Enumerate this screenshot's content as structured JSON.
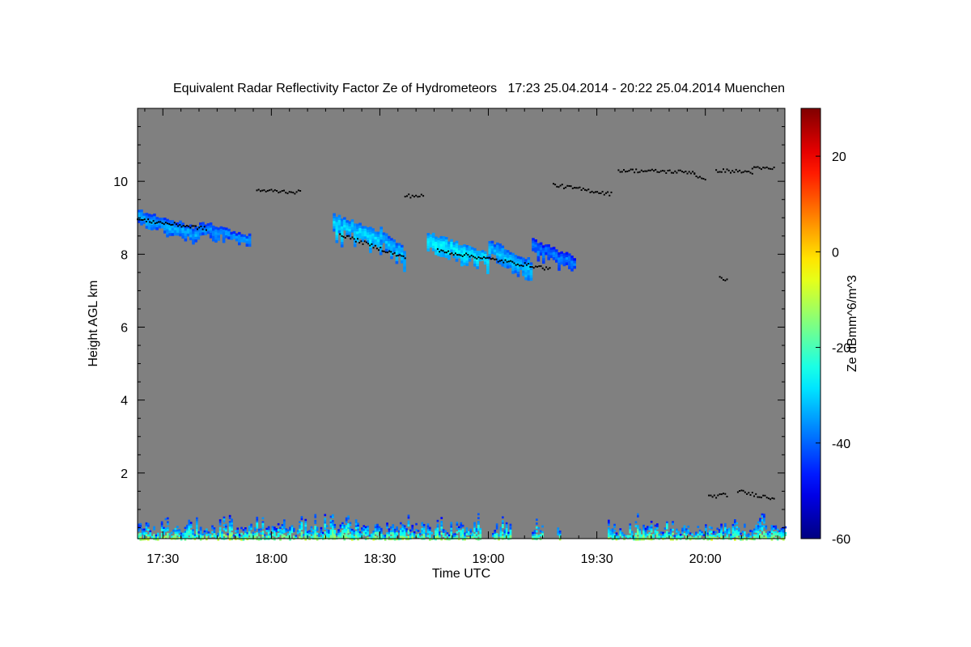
{
  "chart_data": {
    "type": "heatmap",
    "title": "Equivalent Radar Reflectivity Factor Ze of Hydrometeors   17:23 25.04.2014 - 20:22 25.04.2014 Muenchen",
    "xlabel": "Time UTC",
    "ylabel": "Height AGL km",
    "colorbar_label": "Ze dBmm^6/m^3",
    "x_unit": "minutes",
    "xlim": [
      1043,
      1222
    ],
    "ylim": [
      0.2,
      12.0
    ],
    "x_ticks": [
      {
        "value": 1050,
        "label": "17:30"
      },
      {
        "value": 1080,
        "label": "18:00"
      },
      {
        "value": 1110,
        "label": "18:30"
      },
      {
        "value": 1140,
        "label": "19:00"
      },
      {
        "value": 1170,
        "label": "19:30"
      },
      {
        "value": 1200,
        "label": "20:00"
      }
    ],
    "y_ticks": [
      {
        "value": 2,
        "label": "2"
      },
      {
        "value": 4,
        "label": "4"
      },
      {
        "value": 6,
        "label": "6"
      },
      {
        "value": 8,
        "label": "8"
      },
      {
        "value": 10,
        "label": "10"
      }
    ],
    "colorbar": {
      "vmin": -60,
      "vmax": 30,
      "colormap": "jet",
      "ticks": [
        {
          "value": -60,
          "label": "-60"
        },
        {
          "value": -40,
          "label": "-40"
        },
        {
          "value": -20,
          "label": "-20"
        },
        {
          "value": 0,
          "label": "0"
        },
        {
          "value": 20,
          "label": "20"
        }
      ]
    },
    "no_data_color": "#808080",
    "marker_color": "#000000",
    "echo_layers": [
      {
        "t_start": 1043,
        "t_end": 1060,
        "z_top_start": 9.2,
        "z_top_end": 8.7,
        "thickness": 0.35,
        "ze_mean": -42
      },
      {
        "t_start": 1060,
        "t_end": 1074,
        "z_top_start": 8.9,
        "z_top_end": 8.5,
        "thickness": 0.3,
        "ze_mean": -44
      },
      {
        "t_start": 1097,
        "t_end": 1110,
        "z_top_start": 9.1,
        "z_top_end": 8.6,
        "thickness": 0.55,
        "ze_mean": -38
      },
      {
        "t_start": 1110,
        "t_end": 1117,
        "z_top_start": 8.7,
        "z_top_end": 8.1,
        "thickness": 0.45,
        "ze_mean": -40
      },
      {
        "t_start": 1123,
        "t_end": 1140,
        "z_top_start": 8.6,
        "z_top_end": 8.0,
        "thickness": 0.45,
        "ze_mean": -36
      },
      {
        "t_start": 1140,
        "t_end": 1152,
        "z_top_start": 8.4,
        "z_top_end": 7.8,
        "thickness": 0.45,
        "ze_mean": -40
      },
      {
        "t_start": 1152,
        "t_end": 1164,
        "z_top_start": 8.4,
        "z_top_end": 7.9,
        "thickness": 0.35,
        "ze_mean": -46
      }
    ],
    "cloud_base_markers": [
      {
        "t_start": 1043,
        "t_end": 1062,
        "z_start": 8.95,
        "z_end": 8.7
      },
      {
        "t_start": 1076,
        "t_end": 1088,
        "z_start": 9.75,
        "z_end": 9.7
      },
      {
        "t_start": 1099,
        "t_end": 1117,
        "z_start": 8.55,
        "z_end": 7.9
      },
      {
        "t_start": 1117,
        "t_end": 1122,
        "z_start": 9.6,
        "z_end": 9.6
      },
      {
        "t_start": 1126,
        "t_end": 1157,
        "z_start": 8.1,
        "z_end": 7.6
      },
      {
        "t_start": 1158,
        "t_end": 1174,
        "z_start": 9.9,
        "z_end": 9.65
      },
      {
        "t_start": 1176,
        "t_end": 1197,
        "z_start": 10.3,
        "z_end": 10.25
      },
      {
        "t_start": 1197,
        "t_end": 1200,
        "z_start": 10.2,
        "z_end": 10.0
      },
      {
        "t_start": 1203,
        "t_end": 1213,
        "z_start": 10.3,
        "z_end": 10.25
      },
      {
        "t_start": 1213,
        "t_end": 1219,
        "z_start": 10.35,
        "z_end": 10.35
      },
      {
        "t_start": 1204,
        "t_end": 1206,
        "z_start": 7.35,
        "z_end": 7.3
      },
      {
        "t_start": 1201,
        "t_end": 1206,
        "z_start": 1.35,
        "z_end": 1.4
      },
      {
        "t_start": 1209,
        "t_end": 1219,
        "z_start": 1.5,
        "z_end": 1.3
      }
    ],
    "boundary_layer_echo": {
      "segments": [
        [
          1043,
          1138
        ],
        [
          1141,
          1146
        ],
        [
          1152,
          1155
        ],
        [
          1159,
          1160
        ],
        [
          1173,
          1222
        ]
      ],
      "z_bottom": 0.2,
      "z_top_max": 0.9,
      "ze_range": [
        -55,
        -5
      ]
    },
    "grid": false
  }
}
